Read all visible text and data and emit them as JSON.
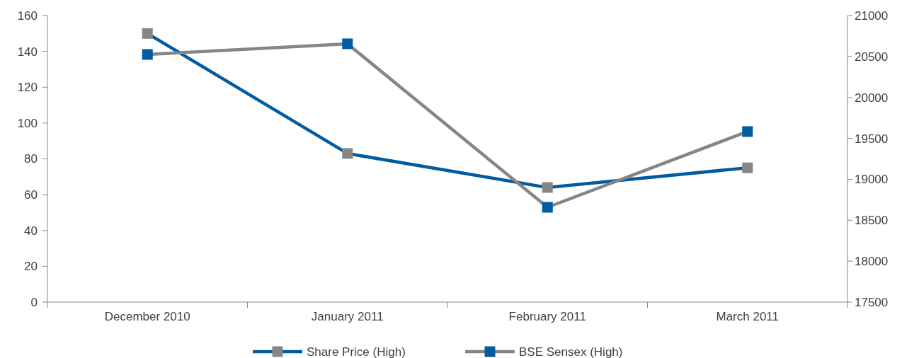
{
  "chart_data": {
    "type": "line",
    "categories": [
      "December 2010",
      "January 2011",
      "February 2011",
      "March 2011"
    ],
    "series": [
      {
        "name": "Share Price (High)",
        "color": "#005ba1",
        "values": [
          150,
          83,
          64,
          75
        ]
      },
      {
        "name": "BSE Sensex (High)",
        "color": "#868686",
        "values": [
          20525,
          20655,
          18658,
          19583
        ],
        "axis": "y2"
      }
    ],
    "ylim": [
      0,
      160
    ],
    "yticks": [
      0,
      20,
      40,
      60,
      80,
      100,
      120,
      140,
      160
    ],
    "y2lim": [
      17500,
      21000
    ],
    "y2ticks": [
      17500,
      18000,
      18500,
      19000,
      19500,
      20000,
      20500,
      21000
    ],
    "marker": "square",
    "legend": "bottom",
    "grid": false
  }
}
